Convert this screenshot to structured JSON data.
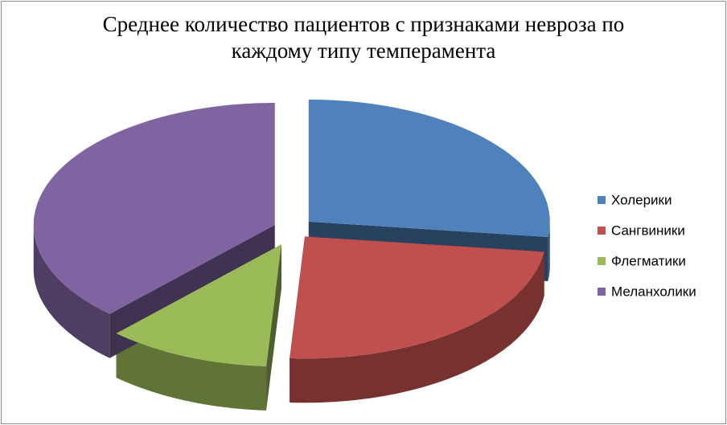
{
  "chart_data": {
    "type": "pie3d",
    "title": "Среднее количество пациентов с признаками невроза по каждому типу темперамента",
    "categories": [
      "Холерики",
      "Сангвиники",
      "Флегматики",
      "Меланхолики"
    ],
    "values": [
      27,
      24,
      11,
      38
    ],
    "colors": [
      "#4f81bd",
      "#c0504d",
      "#9bbb59",
      "#8064a2"
    ],
    "legend": "right"
  }
}
